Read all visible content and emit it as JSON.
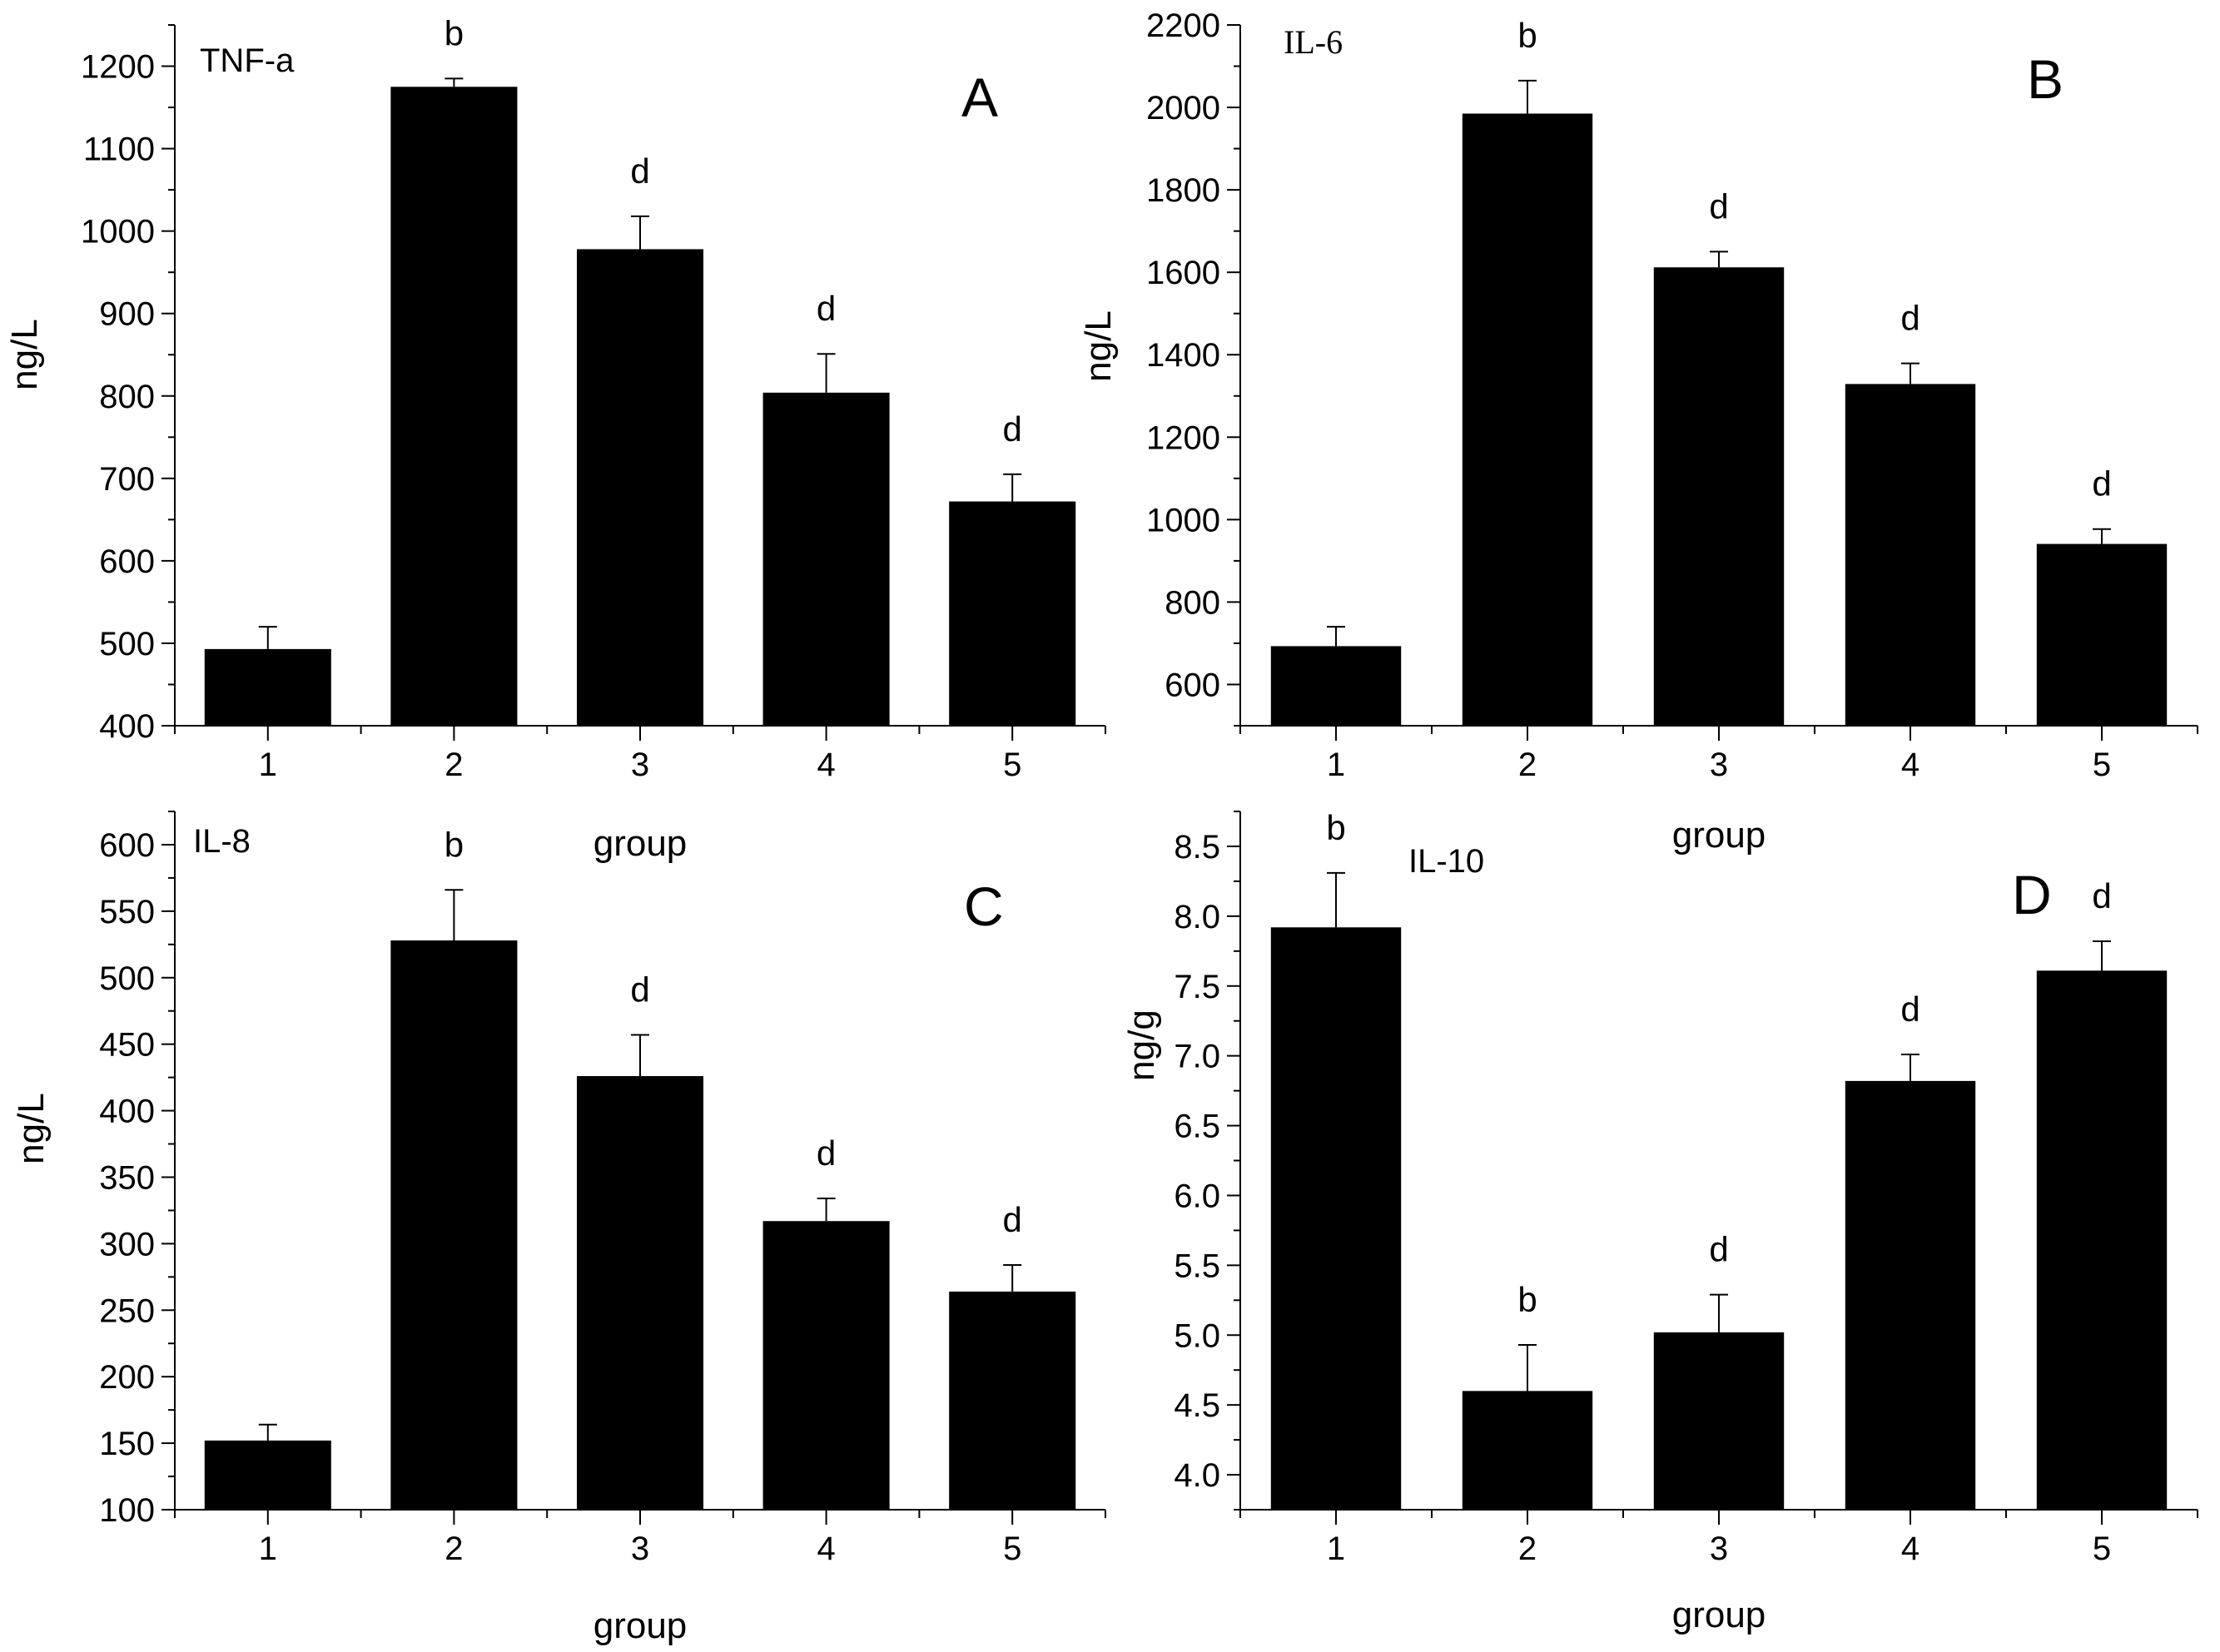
{
  "figure": {
    "background": "#ffffff",
    "bar_color": "#000000"
  },
  "chart_data": [
    {
      "type": "bar",
      "panel": "A",
      "title": "TNF-a",
      "title_font": "sans",
      "xlabel": "group",
      "ylabel": "ng/L",
      "categories": [
        "1",
        "2",
        "3",
        "4",
        "5"
      ],
      "values": [
        493,
        1175,
        978,
        804,
        672
      ],
      "errors": [
        27,
        10,
        40,
        47,
        33
      ],
      "significance": [
        "",
        "b",
        "d",
        "d",
        "d"
      ],
      "ylim": [
        400,
        1250
      ],
      "yticks": [
        "400",
        "500",
        "600",
        "700",
        "800",
        "900",
        "1000",
        "1100",
        "1200"
      ],
      "ytick_values": [
        400,
        500,
        600,
        700,
        800,
        900,
        1000,
        1100,
        1200
      ]
    },
    {
      "type": "bar",
      "panel": "B",
      "title": "IL-6",
      "title_font": "serif",
      "xlabel": "group",
      "ylabel": "ng/L",
      "categories": [
        "1",
        "2",
        "3",
        "4",
        "5"
      ],
      "values": [
        693,
        1985,
        1612,
        1329,
        941
      ],
      "errors": [
        47,
        80,
        38,
        50,
        36
      ],
      "significance": [
        "",
        "b",
        "d",
        "d",
        "d"
      ],
      "ylim": [
        500,
        2200
      ],
      "yticks": [
        "600",
        "800",
        "1000",
        "1200",
        "1400",
        "1600",
        "1800",
        "2000",
        "2200"
      ],
      "ytick_values": [
        600,
        800,
        1000,
        1200,
        1400,
        1600,
        1800,
        2000,
        2200
      ]
    },
    {
      "type": "bar",
      "panel": "C",
      "title": "IL-8",
      "title_font": "sans",
      "xlabel": "group",
      "ylabel": "ng/L",
      "categories": [
        "1",
        "2",
        "3",
        "4",
        "5"
      ],
      "values": [
        152,
        528,
        426,
        317,
        264
      ],
      "errors": [
        12,
        38,
        31,
        17,
        20
      ],
      "significance": [
        "",
        "b",
        "d",
        "d",
        "d"
      ],
      "ylim": [
        100,
        625
      ],
      "yticks": [
        "100",
        "150",
        "200",
        "250",
        "300",
        "350",
        "400",
        "450",
        "500",
        "550",
        "600"
      ],
      "ytick_values": [
        100,
        150,
        200,
        250,
        300,
        350,
        400,
        450,
        500,
        550,
        600
      ]
    },
    {
      "type": "bar",
      "panel": "D",
      "title": "IL-10",
      "title_font": "sans",
      "xlabel": "group",
      "ylabel": "ng/g",
      "categories": [
        "1",
        "2",
        "3",
        "4",
        "5"
      ],
      "values": [
        7.92,
        4.6,
        5.02,
        6.82,
        7.61
      ],
      "errors": [
        0.39,
        0.33,
        0.27,
        0.19,
        0.21
      ],
      "significance": [
        "b",
        "b",
        "d",
        "d",
        "d"
      ],
      "ylim": [
        3.75,
        8.75
      ],
      "yticks": [
        "4.0",
        "4.5",
        "5.0",
        "5.5",
        "6.0",
        "6.5",
        "7.0",
        "7.5",
        "8.0",
        "8.5"
      ],
      "ytick_values": [
        4.0,
        4.5,
        5.0,
        5.5,
        6.0,
        6.5,
        7.0,
        7.5,
        8.0,
        8.5
      ]
    }
  ]
}
